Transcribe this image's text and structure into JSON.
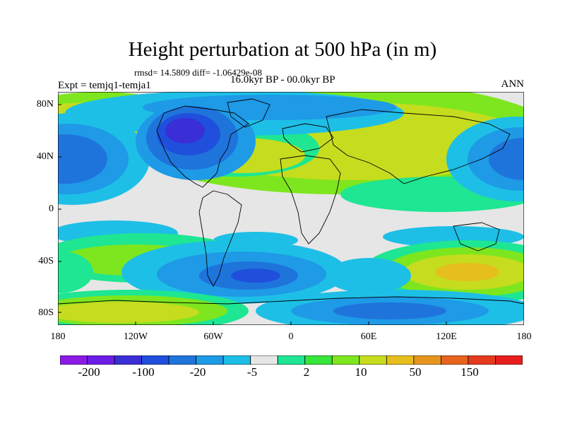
{
  "figure": {
    "title": "Height perturbation at 500 hPa (in m)",
    "stats": "rmsd= 14.5809 diff= -1.06429e-08",
    "period": "16.0kyr BP - 00.0kyr BP",
    "experiment": "Expt = temjq1-temja1",
    "season": "ANN"
  },
  "axes": {
    "lat_labels": [
      "80N",
      "40N",
      "0",
      "40S",
      "80S"
    ],
    "lon_labels": [
      "180",
      "120W",
      "60W",
      "0",
      "60E",
      "120E",
      "180"
    ]
  },
  "colorbar": {
    "labels": [
      "-200",
      "-100",
      "-20",
      "-5",
      "2",
      "10",
      "50",
      "150"
    ],
    "colors": [
      "#8c1ae6",
      "#6b1ee6",
      "#3a2ed6",
      "#1f4fdc",
      "#1f74dc",
      "#1e9ae6",
      "#1ebfe6",
      "#e6e6e6",
      "#1ee692",
      "#36e63a",
      "#7ee61e",
      "#c6dc1e",
      "#e6be1e",
      "#e6961e",
      "#e6641e",
      "#e63a1e",
      "#e61e1e"
    ]
  }
}
